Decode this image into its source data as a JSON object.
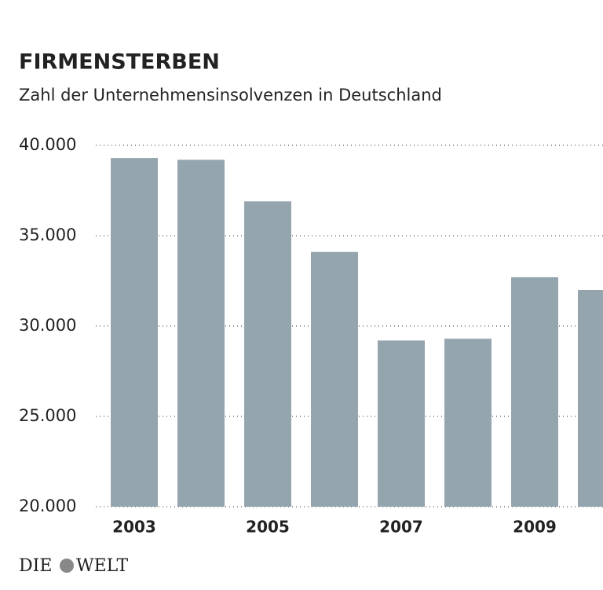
{
  "chart_data": {
    "type": "bar",
    "title": "FIRMENSTERBEN",
    "subtitle": "Zahl der Unternehmensinsolvenzen in Deutschland",
    "categories": [
      "2003",
      null,
      "2005",
      null,
      "2007",
      null,
      "2009",
      null
    ],
    "values": [
      39300,
      39200,
      36900,
      34100,
      29200,
      29300,
      32700,
      32000
    ],
    "color": "#95a5ae",
    "ylim": [
      20000,
      40000
    ],
    "yticks": [
      {
        "value": 20000,
        "label": "20.000"
      },
      {
        "value": 25000,
        "label": "25.000"
      },
      {
        "value": 30000,
        "label": "30.000"
      },
      {
        "value": 35000,
        "label": "35.000"
      },
      {
        "value": 40000,
        "label": "40.000"
      }
    ],
    "grid": true,
    "brand": [
      "DIE",
      "WELT"
    ]
  }
}
